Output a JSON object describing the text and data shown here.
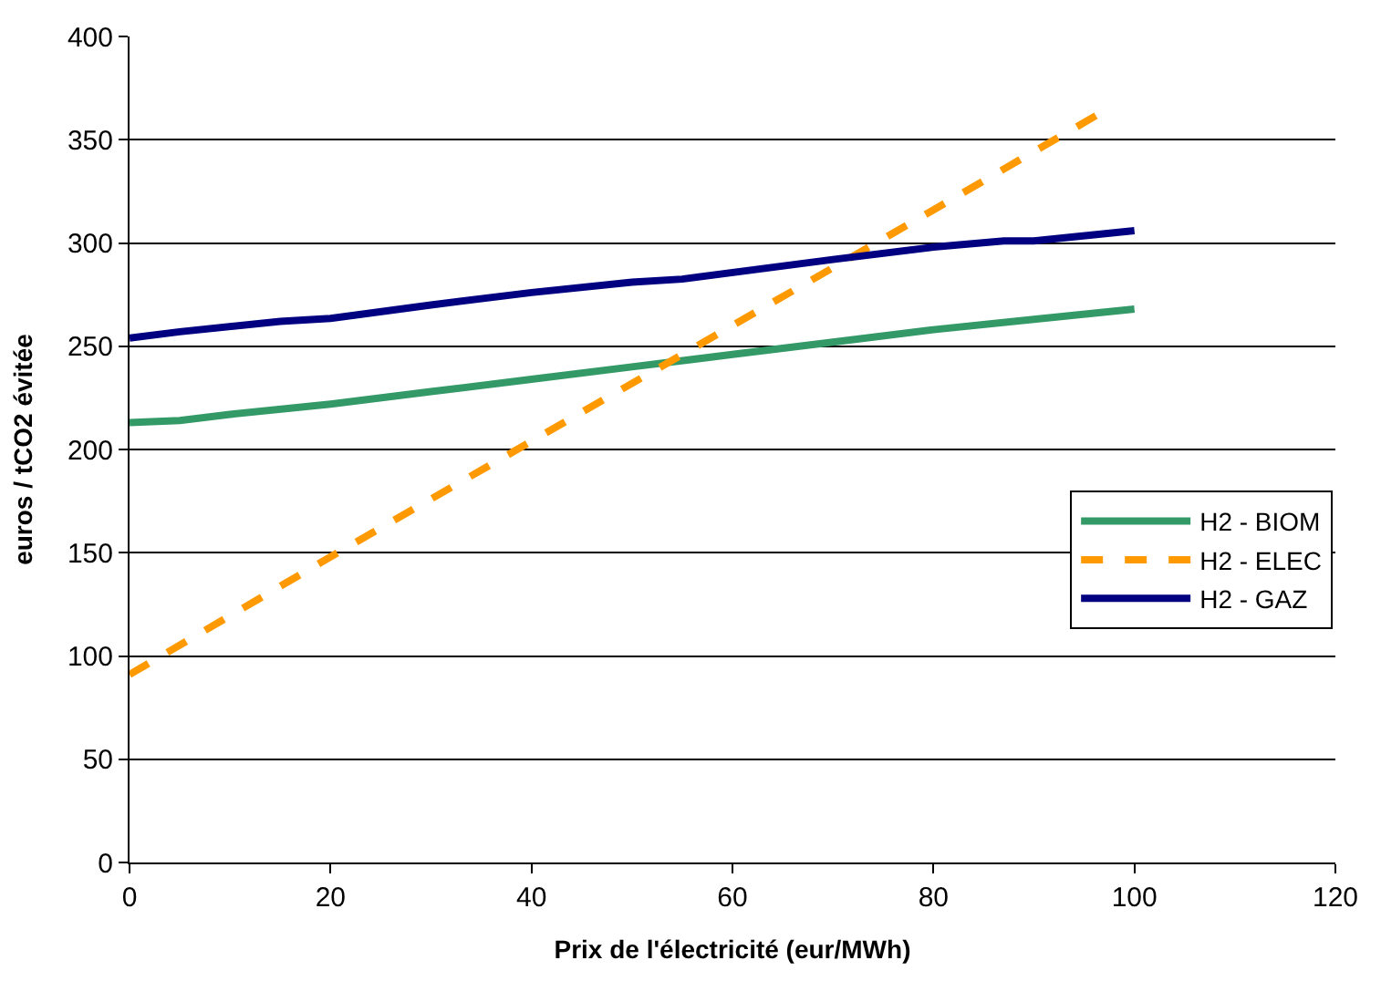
{
  "chart_data": {
    "type": "line",
    "xlabel": "Prix de l'électricité (eur/MWh)",
    "ylabel": "euros / tCO2 évitée",
    "xlim": [
      0,
      120
    ],
    "xticks": [
      0,
      20,
      40,
      60,
      80,
      100,
      120
    ],
    "ylim": [
      0,
      400
    ],
    "yticks": [
      0,
      50,
      100,
      150,
      200,
      250,
      300,
      350,
      400
    ],
    "grid": "y",
    "legend": "right",
    "marker": "none",
    "series": [
      {
        "name": "H2 - BIOM",
        "color": "#339966",
        "line_style": "solid",
        "x": [
          0,
          5,
          10,
          20,
          30,
          40,
          50,
          60,
          70,
          80,
          90,
          100
        ],
        "values": [
          213,
          214,
          217,
          222,
          228,
          234,
          240,
          246,
          252,
          258,
          263,
          268
        ]
      },
      {
        "name": "H2 - ELEC",
        "color": "#ff9900",
        "line_style": "dashed",
        "x": [
          0,
          20,
          40,
          60,
          80,
          97
        ],
        "values": [
          91,
          148,
          204,
          260,
          316,
          364
        ]
      },
      {
        "name": "H2 - GAZ",
        "color": "#000080",
        "line_style": "solid",
        "x": [
          0,
          5,
          15,
          20,
          30,
          40,
          50,
          55,
          70,
          80,
          87,
          90,
          100
        ],
        "values": [
          254,
          257,
          262,
          263.5,
          270,
          276,
          281,
          282.5,
          292,
          298,
          301,
          301,
          306
        ]
      }
    ]
  }
}
